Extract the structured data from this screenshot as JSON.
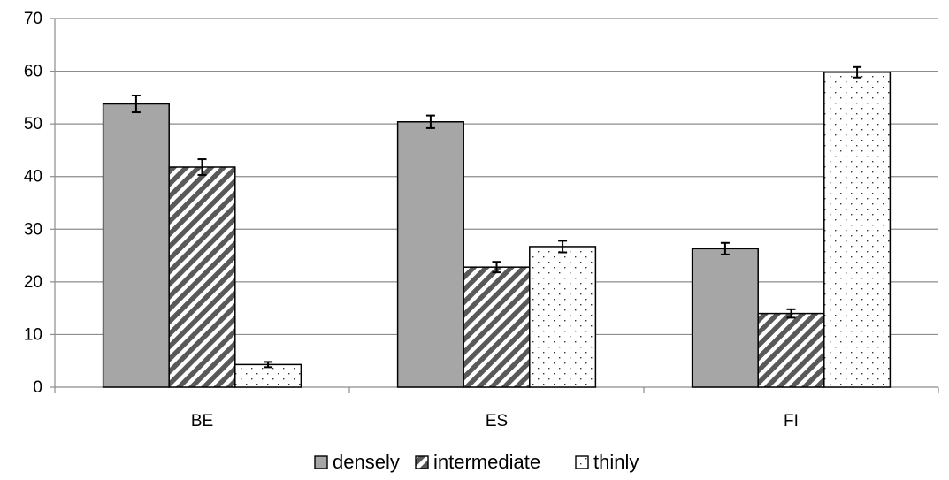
{
  "chart_data": {
    "type": "bar",
    "categories": [
      "BE",
      "ES",
      "FI"
    ],
    "series": [
      {
        "name": "densely",
        "values": [
          53.8,
          50.4,
          26.3
        ],
        "errors": [
          1.6,
          1.2,
          1.1
        ],
        "pattern": "solid",
        "color": "#a6a6a6"
      },
      {
        "name": "intermediate",
        "values": [
          41.8,
          22.8,
          14.0
        ],
        "errors": [
          1.5,
          1.0,
          0.8
        ],
        "pattern": "diagonal-stripes",
        "color": "#595959"
      },
      {
        "name": "thinly",
        "values": [
          4.3,
          26.7,
          59.8
        ],
        "errors": [
          0.5,
          1.1,
          1.0
        ],
        "pattern": "dots",
        "color": "#ffffff"
      }
    ],
    "ylim": [
      0,
      70
    ],
    "yticks": [
      0,
      10,
      20,
      30,
      40,
      50,
      60,
      70
    ],
    "grid": true,
    "legend": "bottom",
    "error_bars": true,
    "title": "",
    "xlabel": "",
    "ylabel": ""
  }
}
